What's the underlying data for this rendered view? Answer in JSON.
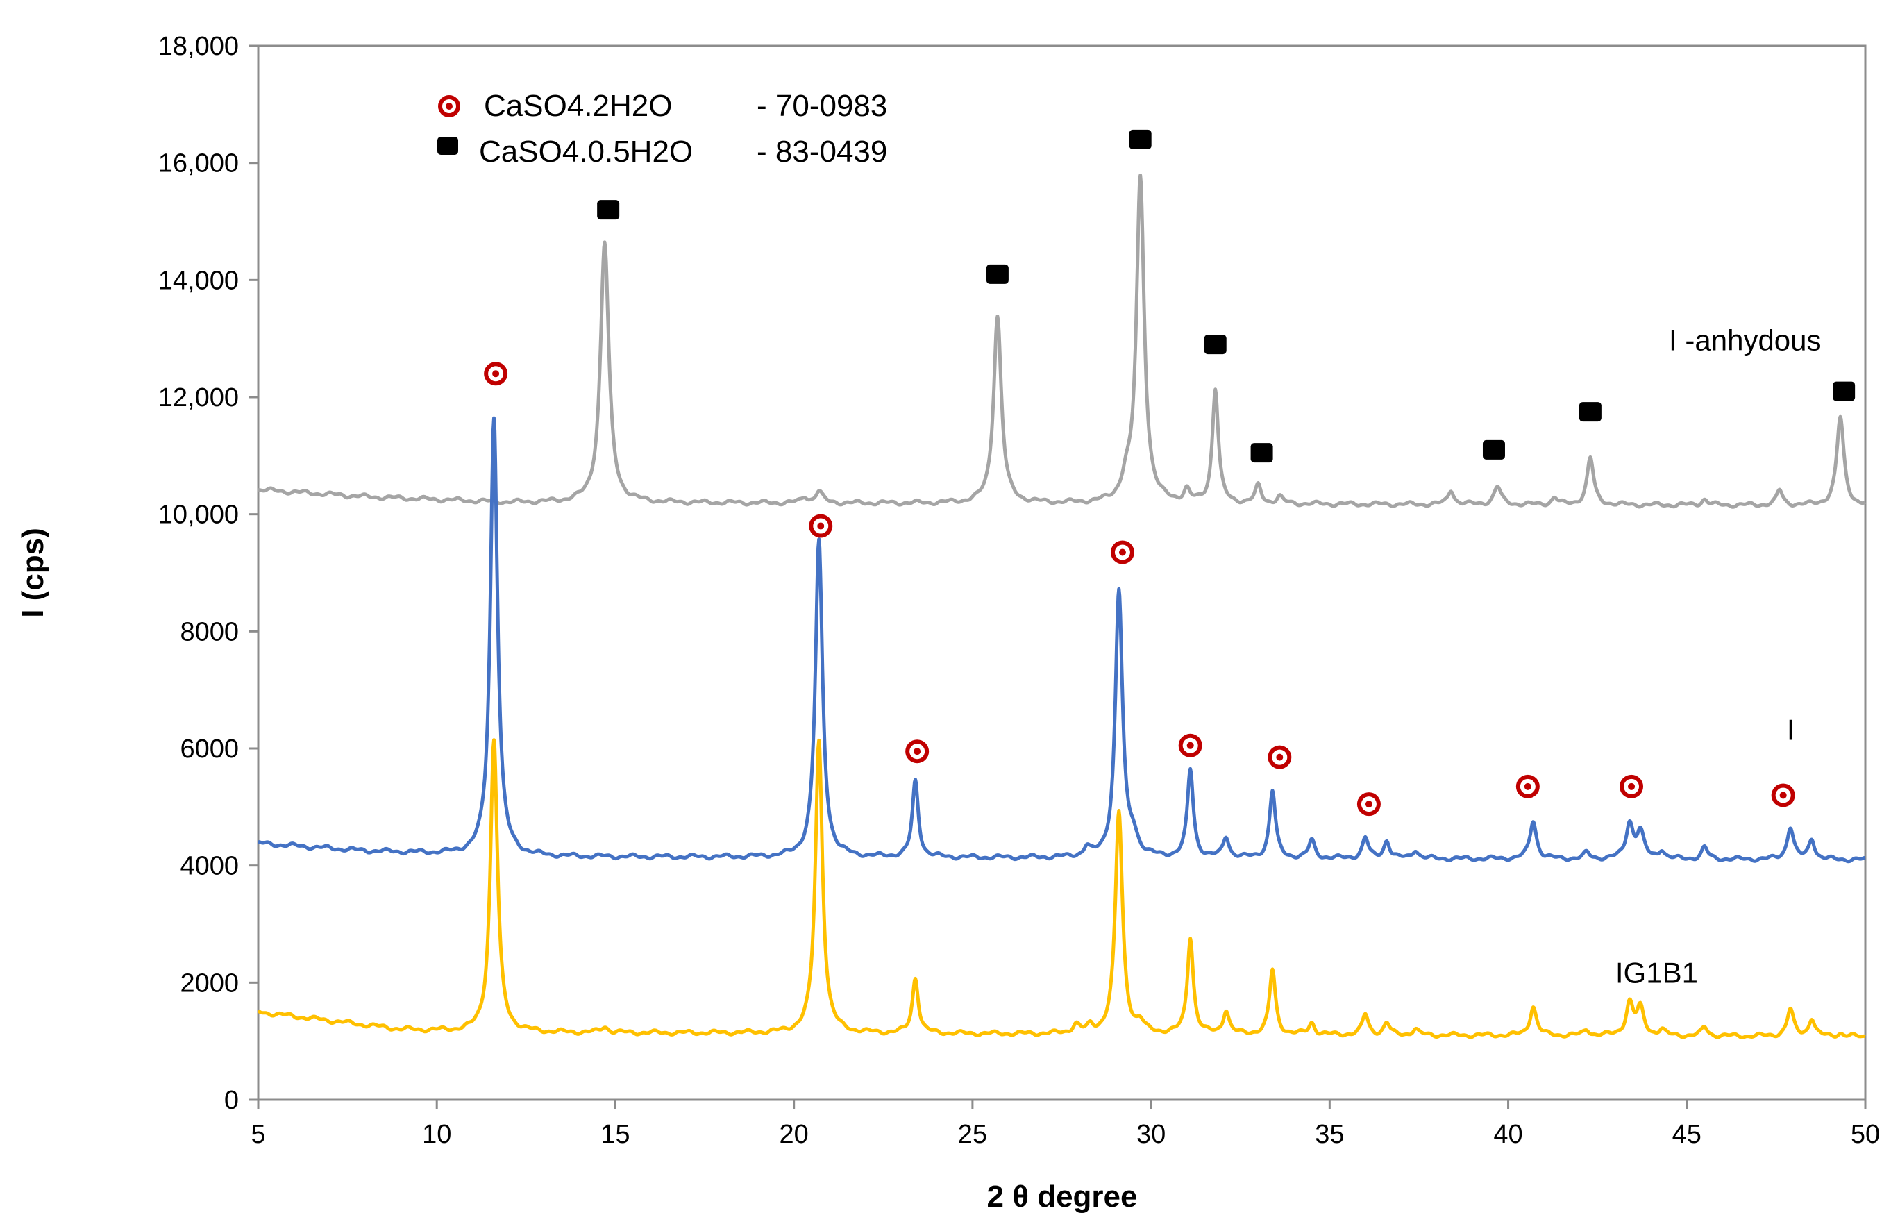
{
  "chart_data": {
    "type": "line",
    "xlabel": "2 θ degree",
    "ylabel": "I (cps)",
    "xlim": [
      5,
      50
    ],
    "ylim": [
      0,
      18000
    ],
    "x_ticks": [
      "5",
      "10",
      "15",
      "20",
      "25",
      "30",
      "35",
      "40",
      "45",
      "50"
    ],
    "y_ticks": [
      "0",
      "2000",
      "4000",
      "6000",
      "8000",
      "10,000",
      "12,000",
      "14,000",
      "16,000",
      "18,000"
    ],
    "grid": false,
    "legend": {
      "position": "top-left",
      "entries": [
        {
          "marker": "circle",
          "text": "CaSO4.2H2O",
          "code": "- 70-0983"
        },
        {
          "marker": "square",
          "text": "CaSO4.0.5H2O",
          "code": "- 83-0439"
        }
      ]
    },
    "series": [
      {
        "name": "I -anhydous",
        "color": "#a5a5a5",
        "label_pos": [
          44.5,
          12800
        ],
        "baseline": [
          [
            5,
            10420
          ],
          [
            8,
            10300
          ],
          [
            12,
            10200
          ],
          [
            50,
            10150
          ]
        ],
        "peaks": [
          [
            14.7,
            4450,
            0.14
          ],
          [
            20.3,
            100,
            0.1
          ],
          [
            20.7,
            200,
            0.12
          ],
          [
            25.7,
            3200,
            0.13
          ],
          [
            29.3,
            300,
            0.15
          ],
          [
            29.7,
            5550,
            0.13
          ],
          [
            31.0,
            200,
            0.1
          ],
          [
            31.8,
            1950,
            0.1
          ],
          [
            33.0,
            300,
            0.1
          ],
          [
            33.6,
            120,
            0.1
          ],
          [
            38.4,
            250,
            0.1
          ],
          [
            39.7,
            300,
            0.12
          ],
          [
            41.3,
            120,
            0.1
          ],
          [
            42.3,
            800,
            0.11
          ],
          [
            45.5,
            100,
            0.1
          ],
          [
            47.6,
            250,
            0.1
          ],
          [
            49.3,
            1500,
            0.12
          ]
        ]
      },
      {
        "name": "I",
        "color": "#4472c4",
        "label_pos": [
          47.8,
          6150
        ],
        "baseline": [
          [
            5,
            4380
          ],
          [
            8,
            4250
          ],
          [
            12,
            4150
          ],
          [
            50,
            4100
          ]
        ],
        "peaks": [
          [
            11.6,
            7500,
            0.12
          ],
          [
            20.7,
            5400,
            0.12
          ],
          [
            23.4,
            1300,
            0.1
          ],
          [
            28.2,
            150,
            0.1
          ],
          [
            29.1,
            4550,
            0.12
          ],
          [
            29.5,
            300,
            0.15
          ],
          [
            31.1,
            1500,
            0.1
          ],
          [
            32.1,
            350,
            0.1
          ],
          [
            33.4,
            1150,
            0.1
          ],
          [
            34.5,
            300,
            0.1
          ],
          [
            36.0,
            350,
            0.1
          ],
          [
            36.6,
            300,
            0.1
          ],
          [
            37.4,
            150,
            0.1
          ],
          [
            40.7,
            650,
            0.11
          ],
          [
            42.2,
            100,
            0.1
          ],
          [
            43.4,
            600,
            0.12
          ],
          [
            43.7,
            450,
            0.12
          ],
          [
            44.3,
            150,
            0.1
          ],
          [
            45.5,
            200,
            0.1
          ],
          [
            47.9,
            550,
            0.11
          ],
          [
            48.5,
            350,
            0.1
          ]
        ]
      },
      {
        "name": "IG1B1",
        "color": "#ffc000",
        "label_pos": [
          43.0,
          2000
        ],
        "baseline": [
          [
            5,
            1500
          ],
          [
            7,
            1350
          ],
          [
            9,
            1200
          ],
          [
            11,
            1150
          ],
          [
            50,
            1080
          ]
        ],
        "peaks": [
          [
            11.6,
            5000,
            0.12
          ],
          [
            14.7,
            100,
            0.12
          ],
          [
            20.7,
            5000,
            0.12
          ],
          [
            23.4,
            950,
            0.1
          ],
          [
            27.9,
            150,
            0.12
          ],
          [
            28.3,
            100,
            0.1
          ],
          [
            29.1,
            3800,
            0.12
          ],
          [
            29.7,
            150,
            0.12
          ],
          [
            31.1,
            1650,
            0.1
          ],
          [
            32.1,
            400,
            0.1
          ],
          [
            33.4,
            1100,
            0.1
          ],
          [
            34.5,
            200,
            0.1
          ],
          [
            36.0,
            350,
            0.1
          ],
          [
            36.6,
            200,
            0.1
          ],
          [
            37.4,
            100,
            0.1
          ],
          [
            40.7,
            500,
            0.11
          ],
          [
            42.2,
            100,
            0.1
          ],
          [
            43.4,
            550,
            0.12
          ],
          [
            43.7,
            450,
            0.12
          ],
          [
            44.3,
            100,
            0.1
          ],
          [
            45.5,
            150,
            0.1
          ],
          [
            47.9,
            450,
            0.11
          ],
          [
            48.5,
            300,
            0.1
          ],
          [
            49.3,
            50,
            0.1
          ]
        ]
      }
    ],
    "markers": {
      "circle": [
        [
          11.65,
          12400
        ],
        [
          20.75,
          9800
        ],
        [
          23.45,
          5950
        ],
        [
          29.2,
          9350
        ],
        [
          31.1,
          6050
        ],
        [
          33.6,
          5850
        ],
        [
          36.1,
          5050
        ],
        [
          40.55,
          5350
        ],
        [
          43.45,
          5350
        ],
        [
          47.7,
          5200
        ]
      ],
      "square": [
        [
          14.8,
          15200
        ],
        [
          25.7,
          14100
        ],
        [
          29.7,
          16400
        ],
        [
          31.8,
          12900
        ],
        [
          33.1,
          11050
        ],
        [
          39.6,
          11100
        ],
        [
          42.3,
          11750
        ],
        [
          49.4,
          12100
        ]
      ]
    }
  }
}
